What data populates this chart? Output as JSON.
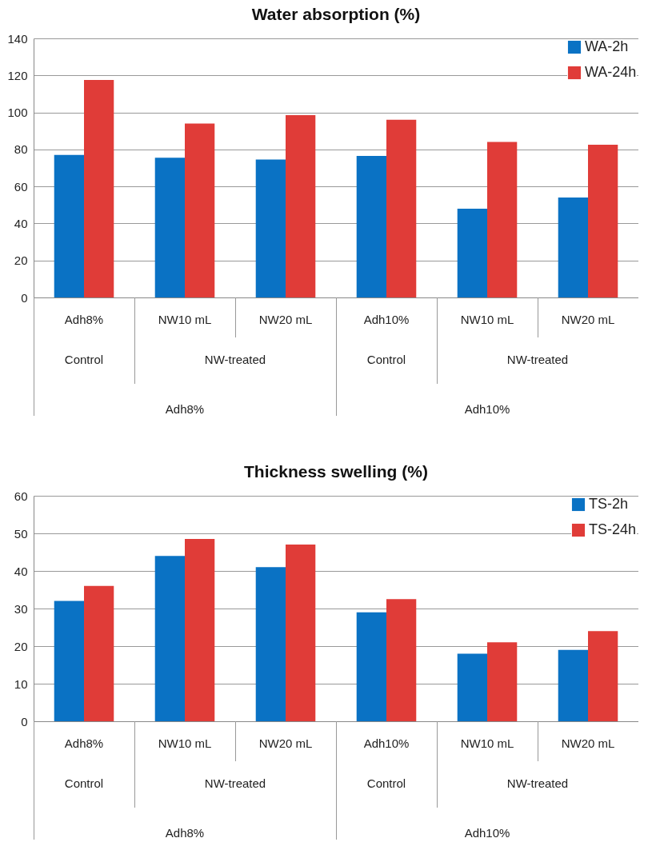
{
  "chart_data": [
    {
      "type": "bar",
      "title": "Water absorption (%)",
      "categories": [
        "Adh8%",
        "NW10 mL",
        "NW20 mL",
        "Adh10%",
        "NW10 mL",
        "NW20 mL"
      ],
      "series": [
        {
          "name": "WA-2h",
          "color": "#0a72c4",
          "values": [
            77,
            75.5,
            74.5,
            76.5,
            48,
            54
          ]
        },
        {
          "name": "WA-24h",
          "color": "#e03c38",
          "values": [
            117.5,
            94,
            98.5,
            96,
            84,
            82.5
          ]
        }
      ],
      "annotations": [
        "Control",
        "NW-treated",
        "Control",
        "NW-treated",
        "Adh8%",
        "Adh10%"
      ],
      "ylim": [
        0,
        140
      ],
      "yticks": [
        0,
        20,
        40,
        60,
        80,
        100,
        120,
        140
      ],
      "grid": "y",
      "legend": "top right"
    },
    {
      "type": "bar",
      "title": "Thickness swelling (%)",
      "categories": [
        "Adh8%",
        "NW10 mL",
        "NW20 mL",
        "Adh10%",
        "NW10 mL",
        "NW20 mL"
      ],
      "series": [
        {
          "name": "TS-2h",
          "color": "#0a72c4",
          "values": [
            32,
            44,
            41,
            29,
            18,
            19
          ]
        },
        {
          "name": "TS-24h",
          "color": "#e03c38",
          "values": [
            36,
            48.5,
            47,
            32.5,
            21,
            24
          ]
        }
      ],
      "annotations": [
        "Control",
        "NW-treated",
        "Control",
        "NW-treated",
        "Adh8%",
        "Adh10%"
      ],
      "ylim": [
        0,
        60
      ],
      "yticks": [
        0,
        10,
        20,
        30,
        40,
        50,
        60
      ],
      "grid": "y",
      "legend": "top right"
    }
  ]
}
